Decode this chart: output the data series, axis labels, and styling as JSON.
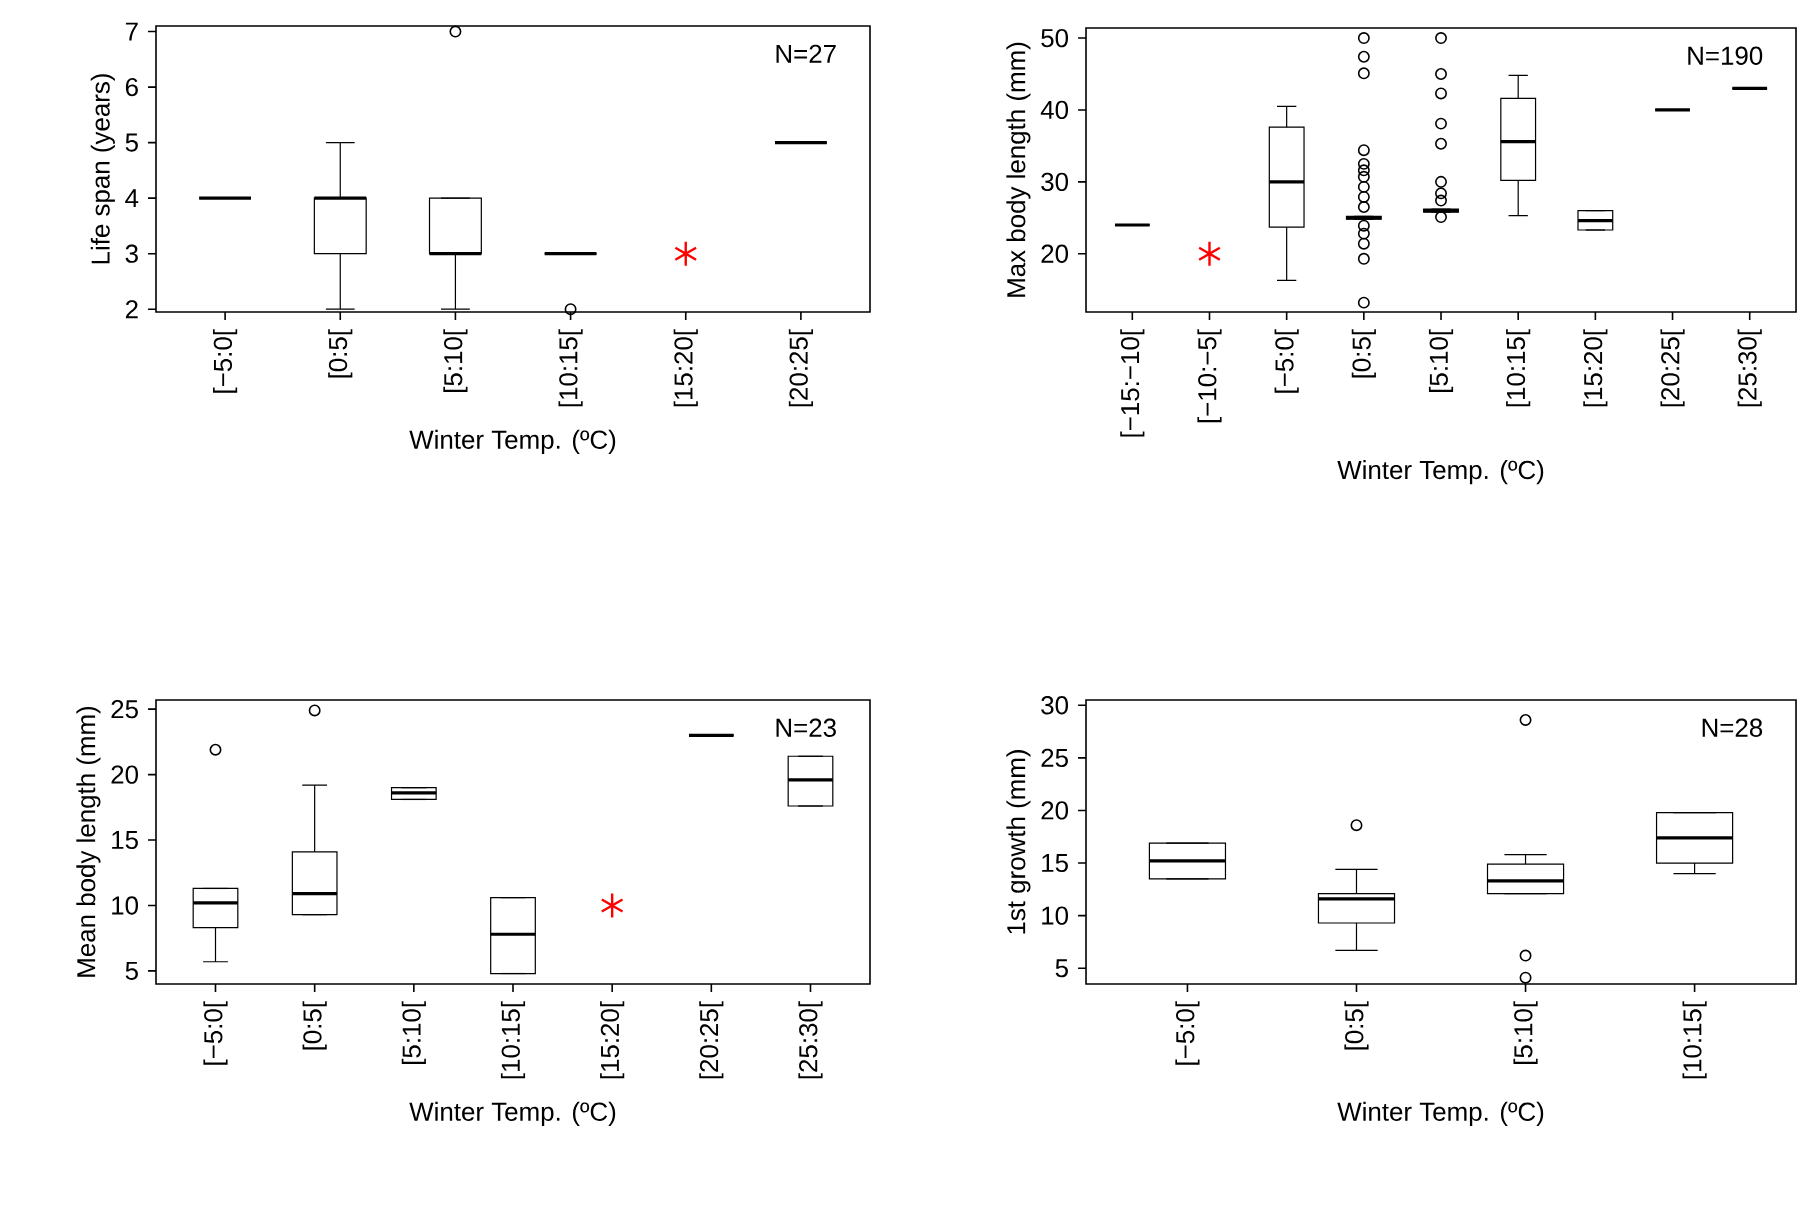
{
  "chart_data": [
    {
      "type": "box",
      "ylabel": "Life span (years)",
      "xlabel": "Winter Temp. (ºC)",
      "categories": [
        "[−5:0[",
        "[0:5[",
        "[5:10[",
        "[10:15[",
        "[15:20[",
        "[20:25["
      ],
      "boxes": [
        {
          "low": 4,
          "q1": 4,
          "median": 4,
          "q3": 4,
          "high": 4
        },
        {
          "low": 2,
          "q1": 3,
          "median": 4,
          "q3": 4,
          "high": 5
        },
        {
          "low": 2,
          "q1": 3,
          "median": 3,
          "q3": 4,
          "high": 4,
          "outliers": [
            7
          ]
        },
        {
          "low": 3,
          "q1": 3,
          "median": 3,
          "q3": 3,
          "high": 3,
          "outliers": [
            2
          ]
        },
        null,
        {
          "low": 5,
          "q1": 5,
          "median": 5,
          "q3": 5,
          "high": 5
        }
      ],
      "ylim": [
        1.95,
        7.1
      ],
      "yticks": [
        2,
        3,
        4,
        5,
        6,
        7
      ],
      "series": [
        {
          "type": "scatter",
          "x": [
            "[15:20["
          ],
          "values": [
            3
          ],
          "color": "#ff0000",
          "marker": "cross"
        }
      ],
      "annotations": [
        "N=27"
      ]
    },
    {
      "type": "box",
      "ylabel": "Max body length (mm)",
      "xlabel": "Winter Temp. (ºC)",
      "categories": [
        "[−15:−10[",
        "[−10:−5[",
        "[−5:0[",
        "[0:5[",
        "[5:10[",
        "[10:15[",
        "[15:20[",
        "[20:25[",
        "[25:30["
      ],
      "boxes": [
        {
          "low": 24,
          "q1": 24,
          "median": 24,
          "q3": 24,
          "high": 24
        },
        null,
        {
          "low": 16.3,
          "q1": 23.7,
          "median": 30,
          "q3": 37.6,
          "high": 40.5
        },
        {
          "low": 24.8,
          "q1": 24.8,
          "median": 25,
          "q3": 25.2,
          "high": 25.2,
          "outliers": [
            13.2,
            19.3,
            21.4,
            22.8,
            23.9,
            26.5,
            27.9,
            29.3,
            30.7,
            31.6,
            32.5,
            34.4,
            45.1,
            47.4,
            50
          ]
        },
        {
          "low": 25.8,
          "q1": 25.8,
          "median": 26,
          "q3": 26.2,
          "high": 26.2,
          "outliers": [
            25.1,
            27.4,
            28.4,
            30,
            35.3,
            38.1,
            42.3,
            45,
            50
          ]
        },
        {
          "low": 25.3,
          "q1": 30.2,
          "median": 35.6,
          "q3": 41.6,
          "high": 44.8
        },
        {
          "low": 23.3,
          "q1": 23.3,
          "median": 24.6,
          "q3": 26,
          "high": 26
        },
        {
          "low": 40,
          "q1": 40,
          "median": 40,
          "q3": 40,
          "high": 40
        },
        {
          "low": 43,
          "q1": 43,
          "median": 43,
          "q3": 43,
          "high": 43
        }
      ],
      "ylim": [
        11.9,
        51.4
      ],
      "yticks": [
        20,
        30,
        40,
        50
      ],
      "series": [
        {
          "type": "scatter",
          "x": [
            "[−10:−5["
          ],
          "values": [
            20
          ],
          "color": "#ff0000",
          "marker": "cross"
        }
      ],
      "annotations": [
        "N=190"
      ]
    },
    {
      "type": "box",
      "ylabel": "Mean body length (mm)",
      "xlabel": "Winter Temp. (ºC)",
      "categories": [
        "[−5:0[",
        "[0:5[",
        "[5:10[",
        "[10:15[",
        "[15:20[",
        "[20:25[",
        "[25:30["
      ],
      "boxes": [
        {
          "low": 5.7,
          "q1": 8.3,
          "median": 10.2,
          "q3": 11.3,
          "high": 11.3,
          "outliers": [
            21.9
          ]
        },
        {
          "low": 9.3,
          "q1": 9.3,
          "median": 10.9,
          "q3": 14.1,
          "high": 19.2,
          "outliers": [
            24.9
          ]
        },
        {
          "low": 18.1,
          "q1": 18.1,
          "median": 18.6,
          "q3": 19,
          "high": 19
        },
        {
          "low": 4.8,
          "q1": 4.8,
          "median": 7.8,
          "q3": 10.6,
          "high": 10.6
        },
        null,
        {
          "low": 23,
          "q1": 23,
          "median": 23,
          "q3": 23,
          "high": 23
        },
        {
          "low": 17.6,
          "q1": 17.6,
          "median": 19.6,
          "q3": 21.4,
          "high": 21.4
        }
      ],
      "ylim": [
        4,
        25.7
      ],
      "yticks": [
        5,
        10,
        15,
        20,
        25
      ],
      "series": [
        {
          "type": "scatter",
          "x": [
            "[15:20["
          ],
          "values": [
            10
          ],
          "color": "#ff0000",
          "marker": "cross"
        }
      ],
      "annotations": [
        "N=23"
      ]
    },
    {
      "type": "box",
      "ylabel": "1st growth (mm)",
      "xlabel": "Winter Temp. (ºC)",
      "categories": [
        "[−5:0[",
        "[0:5[",
        "[5:10[",
        "[10:15["
      ],
      "boxes": [
        {
          "low": 13.5,
          "q1": 13.5,
          "median": 15.2,
          "q3": 16.9,
          "high": 16.9
        },
        {
          "low": 6.7,
          "q1": 9.3,
          "median": 11.6,
          "q3": 12.1,
          "high": 14.4,
          "outliers": [
            18.6
          ]
        },
        {
          "low": 12.1,
          "q1": 12.1,
          "median": 13.3,
          "q3": 14.9,
          "high": 15.8,
          "outliers": [
            28.6,
            6.2,
            4.1
          ]
        },
        {
          "low": 14,
          "q1": 15,
          "median": 17.4,
          "q3": 19.8,
          "high": 19.8
        }
      ],
      "ylim": [
        3.5,
        30.5
      ],
      "yticks": [
        5,
        10,
        15,
        20,
        25,
        30
      ],
      "annotations": [
        "N=28"
      ]
    }
  ]
}
